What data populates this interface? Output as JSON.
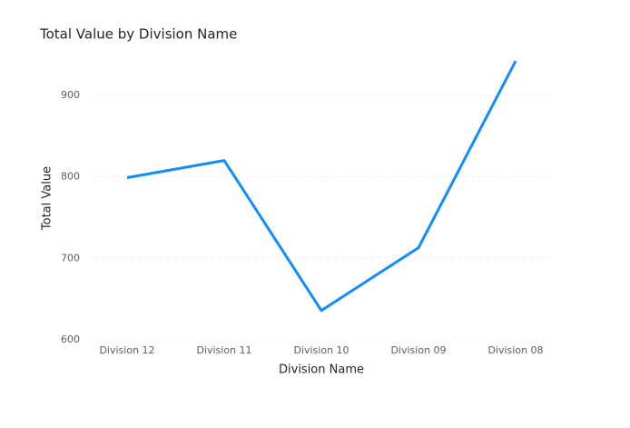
{
  "chart_data": {
    "type": "line",
    "title": "Total Value by Division Name",
    "x_label": "Division Name",
    "y_label": "Total Value",
    "categories": [
      "Division 12",
      "Division 11",
      "Division 10",
      "Division 09",
      "Division 08"
    ],
    "values": [
      799,
      820,
      636,
      713,
      942
    ],
    "color": "#118dff",
    "ylim": [
      600,
      950
    ],
    "yticks": [
      600,
      700,
      800,
      900
    ],
    "grid": true
  }
}
